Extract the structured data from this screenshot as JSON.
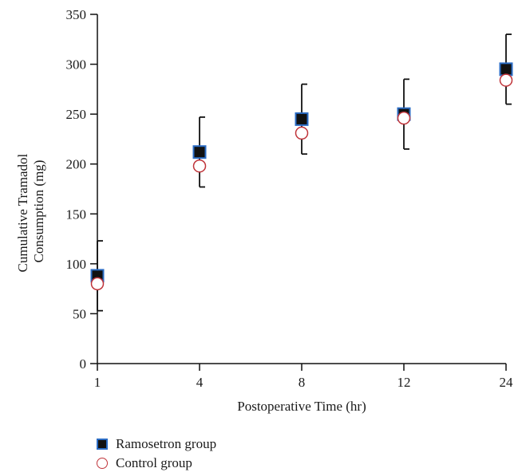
{
  "chart_data": {
    "type": "scatter",
    "categories": [
      "1",
      "4",
      "8",
      "12",
      "24"
    ],
    "xlabel": "Postoperative Time (hr)",
    "ylabel_lines": [
      "Cumulative Tramadol",
      "Consumption (mg)"
    ],
    "ylim": [
      0,
      350
    ],
    "yticks": [
      0,
      50,
      100,
      150,
      200,
      250,
      300,
      350
    ],
    "grid": false,
    "legend_position": "bottom-left",
    "series": [
      {
        "name": "Ramosetron group",
        "marker": "filled-square",
        "color": "#111111",
        "edge_color": "#2b6cc4",
        "values": [
          88,
          212,
          245,
          250,
          295
        ],
        "error_upper": [
          123,
          247,
          280,
          285,
          330
        ],
        "error_lower": [
          53,
          177,
          210,
          215,
          260
        ]
      },
      {
        "name": "Control group",
        "marker": "open-circle",
        "color": "#c0343a",
        "values": [
          80,
          198,
          231,
          246,
          284
        ]
      }
    ]
  }
}
